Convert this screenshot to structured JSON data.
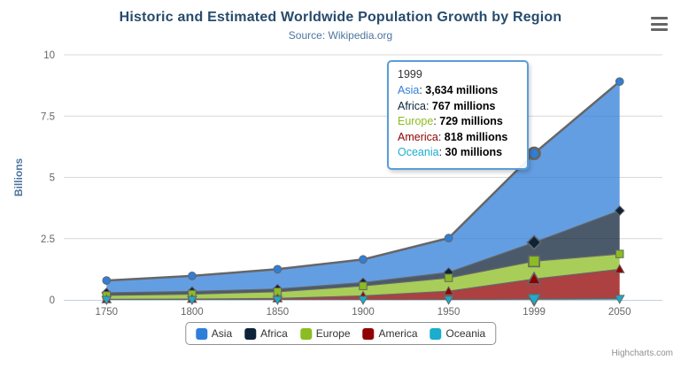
{
  "chart_data": {
    "type": "area",
    "stacking": "normal",
    "title": "Historic and Estimated Worldwide Population Growth by Region",
    "subtitle": "Source: Wikipedia.org",
    "categories": [
      "1750",
      "1800",
      "1850",
      "1900",
      "1950",
      "1999",
      "2050"
    ],
    "xlabel": "",
    "ylabel": "Billions",
    "ylim": [
      0,
      10
    ],
    "yticks": [
      0,
      2.5,
      5,
      7.5,
      10
    ],
    "unit": "millions",
    "grid": true,
    "legend_position": "bottom",
    "fill_opacity": 0.75,
    "line_color": "#666666",
    "hover_index": 5,
    "hover_category": "1999",
    "stack_order_bottom_to_top": [
      "Oceania",
      "America",
      "Europe",
      "Africa",
      "Asia"
    ],
    "series": [
      {
        "name": "Asia",
        "color": "#2f7ed8",
        "marker_symbol": "circle",
        "values": [
          502,
          635,
          809,
          947,
          1402,
          3634,
          5268
        ]
      },
      {
        "name": "Africa",
        "color": "#0d233a",
        "marker_symbol": "diamond",
        "values": [
          106,
          107,
          111,
          133,
          221,
          767,
          1766
        ]
      },
      {
        "name": "Europe",
        "color": "#8bbc21",
        "marker_symbol": "square",
        "values": [
          163,
          203,
          276,
          408,
          547,
          729,
          628
        ]
      },
      {
        "name": "America",
        "color": "#910000",
        "marker_symbol": "triangle",
        "values": [
          18,
          31,
          54,
          156,
          339,
          818,
          1201
        ]
      },
      {
        "name": "Oceania",
        "color": "#1aadce",
        "marker_symbol": "triangle-down",
        "values": [
          2,
          2,
          2,
          6,
          13,
          30,
          46
        ]
      }
    ]
  },
  "tooltip": {
    "header": "1999",
    "border_color": "#5b9cd8",
    "rows": [
      {
        "label": "Asia",
        "value": "3,634 millions",
        "color": "#2f7ed8"
      },
      {
        "label": "Africa",
        "value": "767 millions",
        "color": "#0d233a"
      },
      {
        "label": "Europe",
        "value": "729 millions",
        "color": "#8bbc21"
      },
      {
        "label": "America",
        "value": "818 millions",
        "color": "#910000"
      },
      {
        "label": "Oceania",
        "value": "30 millions",
        "color": "#1aadce"
      }
    ]
  },
  "credits": {
    "label": "Highcharts.com"
  },
  "axis_style": {
    "label_color": "#666666",
    "grid_color": "#d8d8d8",
    "axis_line_color": "#c0d0e0",
    "title_color": "#4d759e"
  }
}
